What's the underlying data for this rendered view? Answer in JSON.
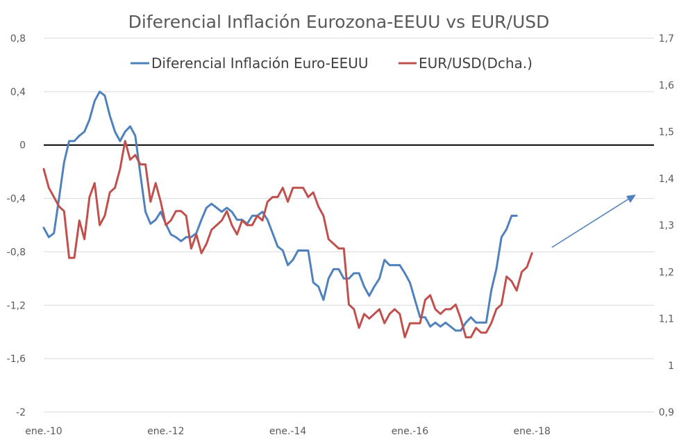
{
  "chart_data": {
    "type": "line",
    "title": "Diferencial Inflación Eurozona-EEUU vs EUR/USD",
    "grid": "horizontal",
    "legend_position": "top",
    "x_tick_labels": [
      "ene.-10",
      "ene.-12",
      "ene.-14",
      "ene.-16",
      "ene.-18"
    ],
    "left_axis": {
      "ylim": [
        -2,
        0.8
      ],
      "ticks": [
        -2,
        -1.6,
        -1.2,
        -0.8,
        -0.4,
        0,
        0.4,
        0.8
      ],
      "tick_labels": [
        "-2",
        "-1,6",
        "-1,2",
        "-0,8",
        "-0,4",
        "0",
        "0,4",
        "0,8"
      ]
    },
    "right_axis": {
      "ylim": [
        0.9,
        1.7
      ],
      "ticks": [
        0.9,
        1,
        1.1,
        1.2,
        1.3,
        1.4,
        1.5,
        1.6,
        1.7
      ],
      "tick_labels": [
        "0,9",
        "1",
        "1,1",
        "1,2",
        "1,3",
        "1,4",
        "1,5",
        "1,6",
        "1,7"
      ]
    },
    "zero_line": 0,
    "x_range_months": [
      0,
      120
    ],
    "series": [
      {
        "name": "Diferencial Inflación Euro-EEUU",
        "axis": "left",
        "color": "#4f81bd",
        "x": [
          0,
          1,
          2,
          3,
          4,
          5,
          6,
          7,
          8,
          9,
          10,
          11,
          12,
          13,
          14,
          15,
          16,
          17,
          18,
          19,
          20,
          21,
          22,
          23,
          24,
          25,
          26,
          27,
          28,
          29,
          30,
          31,
          32,
          33,
          34,
          35,
          36,
          37,
          38,
          39,
          40,
          41,
          42,
          43,
          44,
          45,
          46,
          47,
          48,
          49,
          50,
          51,
          52,
          53,
          54,
          55,
          56,
          57,
          58,
          59,
          60,
          61,
          62,
          63,
          64,
          65,
          66,
          67,
          68,
          69,
          70,
          71,
          72,
          73,
          74,
          75,
          76,
          77,
          78,
          79,
          80,
          81,
          82,
          83,
          84,
          85,
          86,
          87,
          88,
          89,
          90,
          91,
          92,
          93
        ],
        "values": [
          -0.62,
          -0.69,
          -0.66,
          -0.4,
          -0.13,
          0.03,
          0.03,
          0.07,
          0.1,
          0.19,
          0.33,
          0.4,
          0.37,
          0.22,
          0.1,
          0.03,
          0.1,
          0.14,
          0.07,
          -0.22,
          -0.5,
          -0.59,
          -0.56,
          -0.5,
          -0.59,
          -0.67,
          -0.69,
          -0.72,
          -0.69,
          -0.69,
          -0.66,
          -0.56,
          -0.47,
          -0.44,
          -0.47,
          -0.5,
          -0.47,
          -0.5,
          -0.56,
          -0.56,
          -0.59,
          -0.53,
          -0.53,
          -0.5,
          -0.56,
          -0.66,
          -0.76,
          -0.79,
          -0.9,
          -0.86,
          -0.79,
          -0.79,
          -0.79,
          -1.03,
          -1.06,
          -1.16,
          -1.0,
          -0.93,
          -0.93,
          -1.0,
          -1.0,
          -0.96,
          -0.96,
          -1.06,
          -1.13,
          -1.06,
          -1.0,
          -0.86,
          -0.9,
          -0.9,
          -0.9,
          -0.96,
          -1.03,
          -1.16,
          -1.29,
          -1.29,
          -1.36,
          -1.33,
          -1.36,
          -1.33,
          -1.36,
          -1.39,
          -1.39,
          -1.33,
          -1.29,
          -1.33,
          -1.33,
          -1.33,
          -1.09,
          -0.93,
          -0.69,
          -0.63,
          -0.53,
          -0.53
        ]
      },
      {
        "name": "EUR/USD(Dcha.)",
        "axis": "right",
        "color": "#c0504d",
        "x": [
          0,
          1,
          2,
          3,
          4,
          5,
          6,
          7,
          8,
          9,
          10,
          11,
          12,
          13,
          14,
          15,
          16,
          17,
          18,
          19,
          20,
          21,
          22,
          23,
          24,
          25,
          26,
          27,
          28,
          29,
          30,
          31,
          32,
          33,
          34,
          35,
          36,
          37,
          38,
          39,
          40,
          41,
          42,
          43,
          44,
          45,
          46,
          47,
          48,
          49,
          50,
          51,
          52,
          53,
          54,
          55,
          56,
          57,
          58,
          59,
          60,
          61,
          62,
          63,
          64,
          65,
          66,
          67,
          68,
          69,
          70,
          71,
          72,
          73,
          74,
          75,
          76,
          77,
          78,
          79,
          80,
          81,
          82,
          83,
          84,
          85,
          86,
          87,
          88,
          89,
          90,
          91,
          92,
          93,
          94,
          95,
          96
        ],
        "values": [
          1.42,
          1.38,
          1.36,
          1.34,
          1.33,
          1.23,
          1.23,
          1.31,
          1.27,
          1.36,
          1.39,
          1.3,
          1.32,
          1.37,
          1.38,
          1.42,
          1.48,
          1.44,
          1.45,
          1.43,
          1.43,
          1.35,
          1.39,
          1.35,
          1.3,
          1.31,
          1.33,
          1.33,
          1.32,
          1.25,
          1.28,
          1.24,
          1.26,
          1.29,
          1.3,
          1.31,
          1.33,
          1.3,
          1.28,
          1.31,
          1.3,
          1.3,
          1.32,
          1.31,
          1.35,
          1.36,
          1.36,
          1.38,
          1.35,
          1.38,
          1.38,
          1.38,
          1.36,
          1.37,
          1.34,
          1.32,
          1.27,
          1.26,
          1.25,
          1.25,
          1.13,
          1.12,
          1.08,
          1.11,
          1.1,
          1.11,
          1.12,
          1.09,
          1.11,
          1.12,
          1.11,
          1.06,
          1.09,
          1.09,
          1.09,
          1.14,
          1.15,
          1.12,
          1.11,
          1.12,
          1.12,
          1.13,
          1.1,
          1.06,
          1.06,
          1.08,
          1.07,
          1.07,
          1.09,
          1.12,
          1.13,
          1.19,
          1.18,
          1.16,
          1.2,
          1.21,
          1.24
        ]
      }
    ]
  },
  "legend": {
    "series1_label": "Diferencial Inflación Euro-EEUU",
    "series2_label": "EUR/USD(Dcha.)"
  },
  "annotation": {
    "type": "arrow",
    "color": "#4f81bd"
  }
}
